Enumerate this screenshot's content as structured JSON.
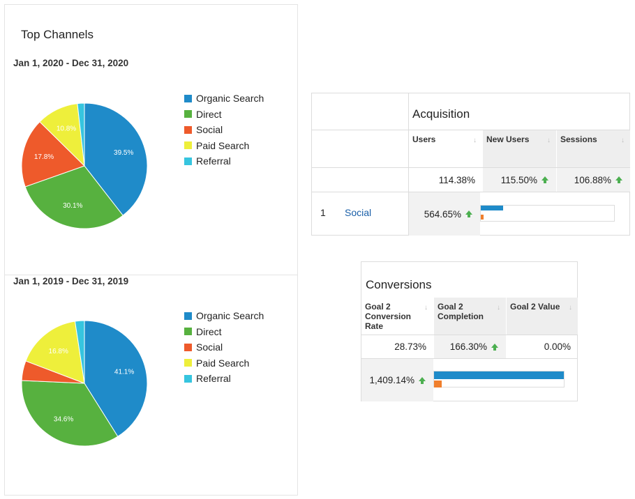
{
  "title": "Top Channels",
  "colors": {
    "organic": "#1f8bc9",
    "direct": "#57b13f",
    "social": "#ee5a2b",
    "paid": "#eeef3b",
    "referral": "#36c5df",
    "bar_blue": "#1f8bc9",
    "bar_orange": "#f07f2d",
    "up_arrow": "#4caf50"
  },
  "legend": [
    "Organic Search",
    "Direct",
    "Social",
    "Paid Search",
    "Referral"
  ],
  "charts": [
    {
      "date_range": "Jan 1, 2020 - Dec 31, 2020",
      "slices": [
        {
          "name": "Organic Search",
          "value": 39.5,
          "label": "39.5%",
          "color": "#1f8bc9"
        },
        {
          "name": "Direct",
          "value": 30.1,
          "label": "30.1%",
          "color": "#57b13f"
        },
        {
          "name": "Social",
          "value": 17.8,
          "label": "17.8%",
          "color": "#ee5a2b"
        },
        {
          "name": "Paid Search",
          "value": 10.8,
          "label": "10.8%",
          "color": "#eeef3b"
        },
        {
          "name": "Referral",
          "value": 1.8,
          "label": "",
          "color": "#36c5df"
        }
      ]
    },
    {
      "date_range": "Jan 1, 2019 - Dec 31, 2019",
      "slices": [
        {
          "name": "Organic Search",
          "value": 41.1,
          "label": "41.1%",
          "color": "#1f8bc9"
        },
        {
          "name": "Direct",
          "value": 34.6,
          "label": "34.6%",
          "color": "#57b13f"
        },
        {
          "name": "Social",
          "value": 5.1,
          "label": "",
          "color": "#ee5a2b"
        },
        {
          "name": "Paid Search",
          "value": 16.8,
          "label": "16.8%",
          "color": "#eeef3b"
        },
        {
          "name": "Referral",
          "value": 2.4,
          "label": "",
          "color": "#36c5df"
        }
      ]
    }
  ],
  "chart_data": [
    {
      "type": "pie",
      "title": "Top Channels",
      "subtitle": "Jan 1, 2020 - Dec 31, 2020",
      "categories": [
        "Organic Search",
        "Direct",
        "Social",
        "Paid Search",
        "Referral"
      ],
      "values": [
        39.5,
        30.1,
        17.8,
        10.8,
        1.8
      ],
      "legend": "right"
    },
    {
      "type": "pie",
      "subtitle": "Jan 1, 2019 - Dec 31, 2019",
      "categories": [
        "Organic Search",
        "Direct",
        "Social",
        "Paid Search",
        "Referral"
      ],
      "values": [
        41.1,
        34.6,
        5.1,
        16.8,
        2.4
      ],
      "legend": "right"
    }
  ],
  "acquisition": {
    "title": "Acquisition",
    "columns": [
      "Users",
      "New Users",
      "Sessions"
    ],
    "totals": [
      "114.38%",
      "115.50%",
      "106.88%"
    ],
    "row": {
      "index": "1",
      "name": "Social",
      "users": "564.65%",
      "bar_current": 0.17,
      "bar_previous": 0.02
    }
  },
  "conversions": {
    "title": "Conversions",
    "columns": [
      "Goal 2 Conversion Rate",
      "Goal 2 Completion",
      "Goal 2 Value"
    ],
    "totals": [
      "28.73%",
      "166.30%",
      "0.00%"
    ],
    "row": {
      "value": "1,409.14%",
      "bar_current": 1.0,
      "bar_previous": 0.06
    }
  }
}
